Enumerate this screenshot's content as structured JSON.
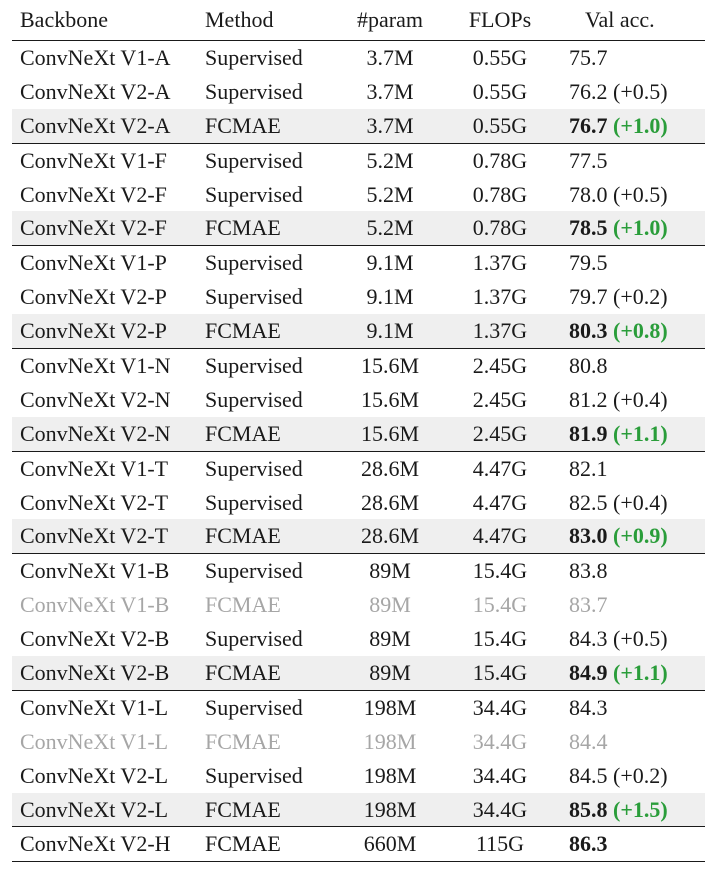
{
  "headers": {
    "backbone": "Backbone",
    "method": "Method",
    "param": "#param",
    "flops": "FLOPs",
    "acc": "Val acc."
  },
  "rows": [
    {
      "backbone": "ConvNeXt V1-A",
      "method": "Supervised",
      "param": "3.7M",
      "flops": "0.55G",
      "acc": "75.7",
      "delta": "",
      "style": "normal",
      "group_start": true
    },
    {
      "backbone": "ConvNeXt V2-A",
      "method": "Supervised",
      "param": "3.7M",
      "flops": "0.55G",
      "acc": "76.2",
      "delta": "(+0.5)",
      "style": "normal",
      "group_start": false
    },
    {
      "backbone": "ConvNeXt V2-A",
      "method": "FCMAE",
      "param": "3.7M",
      "flops": "0.55G",
      "acc": "76.7",
      "delta": "(+1.0)",
      "style": "highlight",
      "group_start": false
    },
    {
      "backbone": "ConvNeXt V1-F",
      "method": "Supervised",
      "param": "5.2M",
      "flops": "0.78G",
      "acc": "77.5",
      "delta": "",
      "style": "normal",
      "group_start": true
    },
    {
      "backbone": "ConvNeXt V2-F",
      "method": "Supervised",
      "param": "5.2M",
      "flops": "0.78G",
      "acc": "78.0",
      "delta": "(+0.5)",
      "style": "normal",
      "group_start": false
    },
    {
      "backbone": "ConvNeXt V2-F",
      "method": "FCMAE",
      "param": "5.2M",
      "flops": "0.78G",
      "acc": "78.5",
      "delta": "(+1.0)",
      "style": "highlight",
      "group_start": false
    },
    {
      "backbone": "ConvNeXt V1-P",
      "method": "Supervised",
      "param": "9.1M",
      "flops": "1.37G",
      "acc": "79.5",
      "delta": "",
      "style": "normal",
      "group_start": true
    },
    {
      "backbone": "ConvNeXt V2-P",
      "method": "Supervised",
      "param": "9.1M",
      "flops": "1.37G",
      "acc": "79.7",
      "delta": "(+0.2)",
      "style": "normal",
      "group_start": false
    },
    {
      "backbone": "ConvNeXt V2-P",
      "method": "FCMAE",
      "param": "9.1M",
      "flops": "1.37G",
      "acc": "80.3",
      "delta": "(+0.8)",
      "style": "highlight",
      "group_start": false
    },
    {
      "backbone": "ConvNeXt V1-N",
      "method": "Supervised",
      "param": "15.6M",
      "flops": "2.45G",
      "acc": "80.8",
      "delta": "",
      "style": "normal",
      "group_start": true
    },
    {
      "backbone": "ConvNeXt V2-N",
      "method": "Supervised",
      "param": "15.6M",
      "flops": "2.45G",
      "acc": "81.2",
      "delta": "(+0.4)",
      "style": "normal",
      "group_start": false
    },
    {
      "backbone": "ConvNeXt V2-N",
      "method": "FCMAE",
      "param": "15.6M",
      "flops": "2.45G",
      "acc": "81.9",
      "delta": "(+1.1)",
      "style": "highlight",
      "group_start": false
    },
    {
      "backbone": "ConvNeXt V1-T",
      "method": "Supervised",
      "param": "28.6M",
      "flops": "4.47G",
      "acc": "82.1",
      "delta": "",
      "style": "normal",
      "group_start": true
    },
    {
      "backbone": "ConvNeXt V2-T",
      "method": "Supervised",
      "param": "28.6M",
      "flops": "4.47G",
      "acc": "82.5",
      "delta": "(+0.4)",
      "style": "normal",
      "group_start": false
    },
    {
      "backbone": "ConvNeXt V2-T",
      "method": "FCMAE",
      "param": "28.6M",
      "flops": "4.47G",
      "acc": "83.0",
      "delta": "(+0.9)",
      "style": "highlight",
      "group_start": false
    },
    {
      "backbone": "ConvNeXt V1-B",
      "method": "Supervised",
      "param": "89M",
      "flops": "15.4G",
      "acc": "83.8",
      "delta": "",
      "style": "normal",
      "group_start": true
    },
    {
      "backbone": "ConvNeXt V1-B",
      "method": "FCMAE",
      "param": "89M",
      "flops": "15.4G",
      "acc": "83.7",
      "delta": "",
      "style": "muted",
      "group_start": false
    },
    {
      "backbone": "ConvNeXt V2-B",
      "method": "Supervised",
      "param": "89M",
      "flops": "15.4G",
      "acc": "84.3",
      "delta": "(+0.5)",
      "style": "normal",
      "group_start": false
    },
    {
      "backbone": "ConvNeXt V2-B",
      "method": "FCMAE",
      "param": "89M",
      "flops": "15.4G",
      "acc": "84.9",
      "delta": "(+1.1)",
      "style": "highlight",
      "group_start": false
    },
    {
      "backbone": "ConvNeXt V1-L",
      "method": "Supervised",
      "param": "198M",
      "flops": "34.4G",
      "acc": "84.3",
      "delta": "",
      "style": "normal",
      "group_start": true
    },
    {
      "backbone": "ConvNeXt V1-L",
      "method": "FCMAE",
      "param": "198M",
      "flops": "34.4G",
      "acc": "84.4",
      "delta": "",
      "style": "muted",
      "group_start": false
    },
    {
      "backbone": "ConvNeXt V2-L",
      "method": "Supervised",
      "param": "198M",
      "flops": "34.4G",
      "acc": "84.5",
      "delta": "(+0.2)",
      "style": "normal",
      "group_start": false
    },
    {
      "backbone": "ConvNeXt V2-L",
      "method": "FCMAE",
      "param": "198M",
      "flops": "34.4G",
      "acc": "85.8",
      "delta": "(+1.5)",
      "style": "highlight",
      "group_start": false
    },
    {
      "backbone": "ConvNeXt V2-H",
      "method": "FCMAE",
      "param": "660M",
      "flops": "115G",
      "acc": "86.3",
      "delta": "",
      "style": "bold",
      "group_start": true
    }
  ],
  "colors": {
    "highlight_bg": "#efefef",
    "muted_text": "#a6a6a6",
    "gain_green": "#2a9d3a"
  }
}
